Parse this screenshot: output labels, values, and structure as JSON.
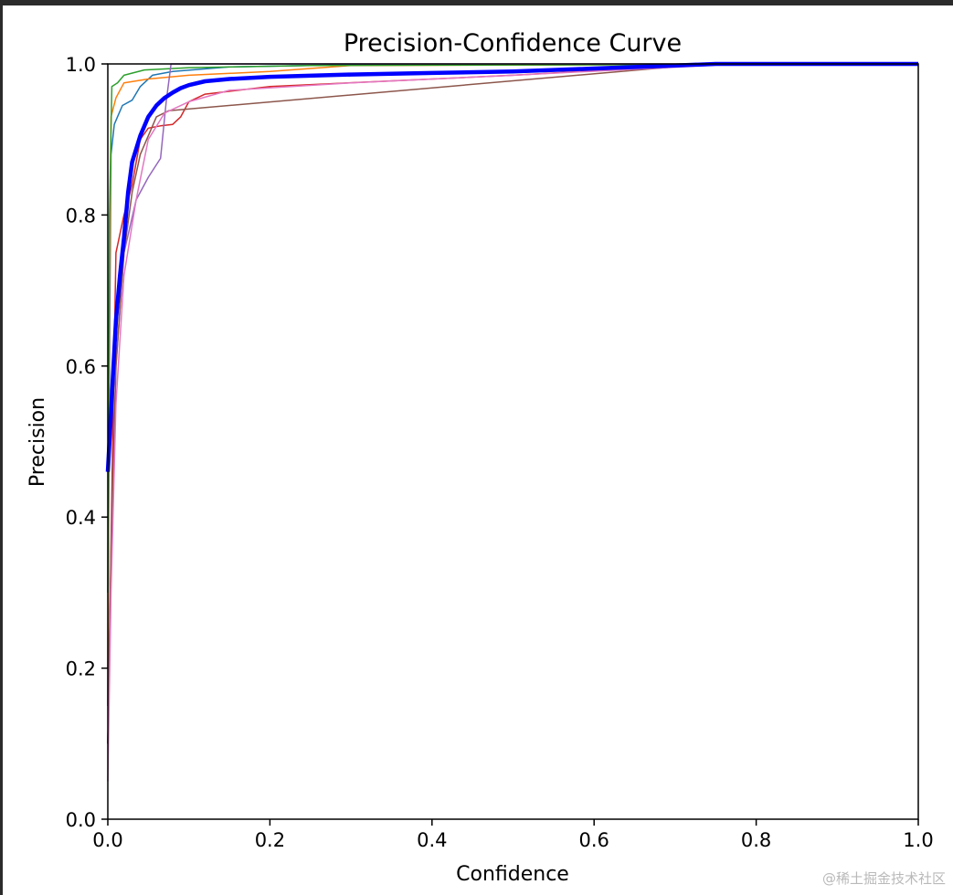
{
  "watermark": "@稀土掘金技术社区",
  "chart_data": {
    "type": "line",
    "title": "Precision-Confidence Curve",
    "xlabel": "Confidence",
    "ylabel": "Precision",
    "xlim": [
      0,
      1
    ],
    "ylim": [
      0,
      1
    ],
    "xticks": [
      "0.0",
      "0.2",
      "0.4",
      "0.6",
      "0.8",
      "1.0"
    ],
    "yticks": [
      "0.0",
      "0.2",
      "0.4",
      "0.6",
      "0.8",
      "1.0"
    ],
    "grid": false,
    "legend": "none",
    "series": [
      {
        "color": "#1f77b4",
        "width": 1.5,
        "points": [
          [
            0,
            0.15
          ],
          [
            0.002,
            0.6
          ],
          [
            0.004,
            0.88
          ],
          [
            0.008,
            0.92
          ],
          [
            0.012,
            0.93
          ],
          [
            0.018,
            0.945
          ],
          [
            0.03,
            0.952
          ],
          [
            0.04,
            0.97
          ],
          [
            0.055,
            0.985
          ],
          [
            0.08,
            0.99
          ],
          [
            0.15,
            0.996
          ],
          [
            0.3,
            0.999
          ],
          [
            1.0,
            1.0
          ]
        ]
      },
      {
        "color": "#ff7f0e",
        "width": 1.5,
        "points": [
          [
            0,
            0.2
          ],
          [
            0.002,
            0.7
          ],
          [
            0.004,
            0.93
          ],
          [
            0.01,
            0.955
          ],
          [
            0.02,
            0.975
          ],
          [
            0.05,
            0.98
          ],
          [
            0.1,
            0.985
          ],
          [
            0.2,
            0.99
          ],
          [
            0.3,
            0.998
          ],
          [
            1.0,
            1.0
          ]
        ]
      },
      {
        "color": "#2ca02c",
        "width": 1.5,
        "points": [
          [
            0,
            0.3
          ],
          [
            0.002,
            0.8
          ],
          [
            0.005,
            0.97
          ],
          [
            0.012,
            0.975
          ],
          [
            0.02,
            0.985
          ],
          [
            0.045,
            0.992
          ],
          [
            0.1,
            0.995
          ],
          [
            0.25,
            0.998
          ],
          [
            1.0,
            1.0
          ]
        ]
      },
      {
        "color": "#d62728",
        "width": 1.5,
        "points": [
          [
            0,
            0.1
          ],
          [
            0.003,
            0.3
          ],
          [
            0.006,
            0.5
          ],
          [
            0.01,
            0.75
          ],
          [
            0.02,
            0.8
          ],
          [
            0.03,
            0.84
          ],
          [
            0.04,
            0.9
          ],
          [
            0.05,
            0.915
          ],
          [
            0.065,
            0.918
          ],
          [
            0.08,
            0.92
          ],
          [
            0.09,
            0.93
          ],
          [
            0.1,
            0.95
          ],
          [
            0.12,
            0.96
          ],
          [
            0.2,
            0.97
          ],
          [
            0.5,
            0.985
          ],
          [
            0.75,
            1.0
          ],
          [
            1.0,
            1.0
          ]
        ]
      },
      {
        "color": "#9467bd",
        "width": 1.5,
        "points": [
          [
            0,
            0.1
          ],
          [
            0.005,
            0.4
          ],
          [
            0.01,
            0.6
          ],
          [
            0.02,
            0.75
          ],
          [
            0.035,
            0.82
          ],
          [
            0.05,
            0.85
          ],
          [
            0.065,
            0.875
          ],
          [
            0.072,
            0.95
          ],
          [
            0.078,
            1.0
          ],
          [
            1.0,
            1.0
          ]
        ]
      },
      {
        "color": "#8c564b",
        "width": 1.5,
        "points": [
          [
            0,
            0.1
          ],
          [
            0.005,
            0.4
          ],
          [
            0.01,
            0.6
          ],
          [
            0.02,
            0.75
          ],
          [
            0.03,
            0.83
          ],
          [
            0.04,
            0.88
          ],
          [
            0.06,
            0.93
          ],
          [
            0.075,
            0.938
          ],
          [
            0.74,
            1.0
          ],
          [
            1.0,
            1.0
          ]
        ]
      },
      {
        "color": "#e377c2",
        "width": 1.5,
        "points": [
          [
            0,
            0.05
          ],
          [
            0.004,
            0.3
          ],
          [
            0.01,
            0.55
          ],
          [
            0.02,
            0.72
          ],
          [
            0.035,
            0.82
          ],
          [
            0.05,
            0.9
          ],
          [
            0.07,
            0.935
          ],
          [
            0.1,
            0.95
          ],
          [
            0.15,
            0.965
          ],
          [
            0.3,
            0.975
          ],
          [
            0.5,
            0.985
          ],
          [
            0.78,
            1.0
          ],
          [
            1.0,
            1.0
          ]
        ]
      },
      {
        "color": "#0000ff",
        "width": 4.5,
        "points": [
          [
            0,
            0.46
          ],
          [
            0.003,
            0.52
          ],
          [
            0.006,
            0.58
          ],
          [
            0.01,
            0.66
          ],
          [
            0.015,
            0.72
          ],
          [
            0.02,
            0.77
          ],
          [
            0.025,
            0.83
          ],
          [
            0.03,
            0.87
          ],
          [
            0.04,
            0.905
          ],
          [
            0.05,
            0.93
          ],
          [
            0.06,
            0.945
          ],
          [
            0.07,
            0.955
          ],
          [
            0.08,
            0.962
          ],
          [
            0.09,
            0.968
          ],
          [
            0.1,
            0.972
          ],
          [
            0.12,
            0.977
          ],
          [
            0.15,
            0.98
          ],
          [
            0.2,
            0.983
          ],
          [
            0.3,
            0.986
          ],
          [
            0.4,
            0.988
          ],
          [
            0.5,
            0.99
          ],
          [
            0.6,
            0.994
          ],
          [
            0.7,
            0.998
          ],
          [
            0.75,
            1.0
          ],
          [
            1.0,
            1.0
          ]
        ]
      }
    ]
  }
}
